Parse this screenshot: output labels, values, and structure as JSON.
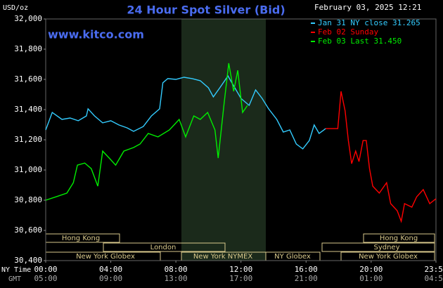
{
  "chart_data": {
    "type": "line",
    "title": "24 Hour Spot Silver (Bid)",
    "y_label": "USD/oz",
    "timestamp": "February 03, 2025 12:21",
    "watermark": "www.kitco.com",
    "x_label": "NY Time",
    "x2_label": "GMT",
    "xlim": [
      0,
      23.983
    ],
    "xticks": [
      {
        "value": 0,
        "label": "00:00"
      },
      {
        "value": 4,
        "label": "04:00"
      },
      {
        "value": 8,
        "label": "08:00"
      },
      {
        "value": 12,
        "label": "12:00"
      },
      {
        "value": 16,
        "label": "16:00"
      },
      {
        "value": 20,
        "label": "20:00"
      },
      {
        "value": 23.983,
        "label": "23:59"
      }
    ],
    "x2ticks": [
      "05:00",
      "09:00",
      "13:00",
      "17:00",
      "21:00",
      "01:00",
      "04:59"
    ],
    "ylim": [
      30.4,
      32.0
    ],
    "yticks": [
      {
        "value": 30.4,
        "label": "30,400"
      },
      {
        "value": 30.6,
        "label": "30,600"
      },
      {
        "value": 30.8,
        "label": "30,800"
      },
      {
        "value": 31.0,
        "label": "31,000"
      },
      {
        "value": 31.2,
        "label": "31,200"
      },
      {
        "value": 31.4,
        "label": "31,400"
      },
      {
        "value": 31.6,
        "label": "31,600"
      },
      {
        "value": 31.8,
        "label": "31,800"
      },
      {
        "value": 32.0,
        "label": "32,000"
      }
    ],
    "markets": [
      "Hong Kong",
      "Hong Kong",
      "London",
      "Sydney",
      "New York Globex",
      "New York NYMEX",
      "NY Globex",
      "New York Globex"
    ],
    "series": [
      {
        "name": "Jan 31 NY close 31.265",
        "color": "#33ccff",
        "x": [
          0.0,
          0.4,
          1.0,
          1.5,
          2.0,
          2.5,
          2.6,
          3.0,
          3.5,
          4.0,
          4.5,
          5.0,
          5.4,
          6.0,
          6.5,
          7.0,
          7.2,
          7.5,
          8.0,
          8.5,
          9.0,
          9.5,
          10.0,
          10.3,
          10.7,
          11.2,
          11.5,
          12.0,
          12.5,
          12.9,
          13.3,
          13.7,
          14.2,
          14.6,
          15.0,
          15.4,
          15.8,
          16.2,
          16.5,
          16.8,
          17.1,
          17.2
        ],
        "values": [
          31.265,
          31.381,
          31.335,
          31.344,
          31.326,
          31.358,
          31.405,
          31.358,
          31.312,
          31.326,
          31.298,
          31.279,
          31.256,
          31.288,
          31.358,
          31.405,
          31.577,
          31.605,
          31.6,
          31.614,
          31.605,
          31.591,
          31.544,
          31.484,
          31.544,
          31.623,
          31.567,
          31.474,
          31.428,
          31.53,
          31.474,
          31.405,
          31.335,
          31.251,
          31.265,
          31.172,
          31.14,
          31.195,
          31.298,
          31.242,
          31.265,
          31.274
        ]
      },
      {
        "name": "Feb 02 Sunday",
        "color": "#ff0000",
        "x": [
          17.2,
          17.95,
          18.15,
          18.4,
          18.6,
          18.8,
          19.05,
          19.25,
          19.5,
          19.7,
          19.9,
          20.1,
          20.5,
          20.95,
          21.2,
          21.6,
          21.85,
          22.05,
          22.5,
          22.8,
          23.2,
          23.6,
          23.983
        ],
        "values": [
          31.274,
          31.274,
          31.521,
          31.391,
          31.195,
          31.042,
          31.125,
          31.056,
          31.195,
          31.195,
          31.009,
          30.893,
          30.847,
          30.916,
          30.777,
          30.73,
          30.66,
          30.777,
          30.754,
          30.823,
          30.87,
          30.777,
          30.81
        ]
      },
      {
        "name": "Feb 03 Last 31.450",
        "color": "#00ee00",
        "x": [
          0.0,
          0.65,
          1.3,
          1.7,
          1.95,
          2.4,
          2.8,
          3.2,
          3.5,
          3.9,
          4.3,
          4.8,
          5.4,
          5.8,
          6.3,
          6.9,
          7.6,
          8.2,
          8.6,
          9.1,
          9.5,
          9.95,
          10.4,
          10.6,
          10.95,
          11.25,
          11.55,
          11.8,
          12.1,
          12.4
        ],
        "values": [
          30.8,
          30.823,
          30.847,
          30.916,
          31.032,
          31.046,
          31.009,
          30.893,
          31.125,
          31.079,
          31.032,
          31.125,
          31.149,
          31.172,
          31.242,
          31.219,
          31.265,
          31.335,
          31.219,
          31.358,
          31.335,
          31.381,
          31.265,
          31.079,
          31.428,
          31.707,
          31.521,
          31.66,
          31.381,
          31.428
        ]
      }
    ]
  }
}
